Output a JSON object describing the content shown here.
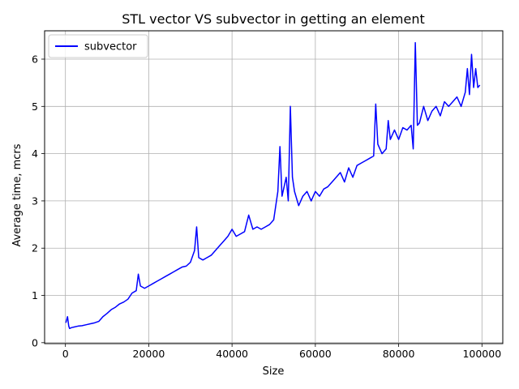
{
  "chart_data": {
    "type": "line",
    "title": "STL vector VS subvector in getting an element",
    "xlabel": "Size",
    "ylabel": "Average time, mcrs",
    "xlim": [
      -5000,
      105000
    ],
    "ylim": [
      -0.02,
      6.6
    ],
    "xticks": [
      0,
      20000,
      40000,
      60000,
      80000,
      100000
    ],
    "xtick_labels": [
      "0",
      "20000",
      "40000",
      "60000",
      "80000",
      "100000"
    ],
    "yticks": [
      0,
      1,
      2,
      3,
      4,
      5,
      6
    ],
    "ytick_labels": [
      "0",
      "1",
      "2",
      "3",
      "4",
      "5",
      "6"
    ],
    "grid": true,
    "legend_position": "upper-left",
    "series": [
      {
        "name": "subvector",
        "color": "#0000ff",
        "x": [
          100,
          500,
          800,
          1000,
          1500,
          2000,
          3000,
          4000,
          5000,
          6000,
          7000,
          8000,
          9000,
          10000,
          11000,
          12000,
          13000,
          14000,
          15000,
          16000,
          17000,
          17500,
          18000,
          19000,
          20000,
          21000,
          22000,
          23000,
          24000,
          25000,
          26000,
          27000,
          28000,
          29000,
          30000,
          31000,
          31500,
          32000,
          33000,
          34000,
          35000,
          36000,
          37000,
          38000,
          39000,
          40000,
          41000,
          42000,
          43000,
          44000,
          45000,
          46000,
          47000,
          48000,
          49000,
          50000,
          51000,
          51500,
          52000,
          53000,
          53500,
          54000,
          54500,
          55000,
          56000,
          57000,
          58000,
          59000,
          60000,
          61000,
          62000,
          63000,
          64000,
          65000,
          66000,
          67000,
          68000,
          69000,
          70000,
          71000,
          72000,
          73000,
          74000,
          74500,
          75000,
          76000,
          77000,
          77500,
          78000,
          79000,
          80000,
          81000,
          82000,
          83000,
          83500,
          84000,
          84500,
          85000,
          86000,
          87000,
          88000,
          89000,
          90000,
          91000,
          92000,
          93000,
          94000,
          95000,
          96000,
          96500,
          97000,
          97500,
          98000,
          98500,
          99000,
          99500
        ],
        "values": [
          0.42,
          0.55,
          0.35,
          0.3,
          0.32,
          0.33,
          0.35,
          0.36,
          0.38,
          0.4,
          0.42,
          0.45,
          0.55,
          0.62,
          0.7,
          0.75,
          0.82,
          0.86,
          0.92,
          1.05,
          1.1,
          1.45,
          1.2,
          1.15,
          1.2,
          1.25,
          1.3,
          1.35,
          1.4,
          1.45,
          1.5,
          1.55,
          1.6,
          1.62,
          1.7,
          1.95,
          2.45,
          1.8,
          1.75,
          1.8,
          1.85,
          1.95,
          2.05,
          2.15,
          2.25,
          2.4,
          2.25,
          2.3,
          2.35,
          2.7,
          2.4,
          2.45,
          2.4,
          2.45,
          2.5,
          2.6,
          3.2,
          4.15,
          3.1,
          3.5,
          3.0,
          5.0,
          3.5,
          3.2,
          2.9,
          3.1,
          3.2,
          3.0,
          3.2,
          3.1,
          3.25,
          3.3,
          3.4,
          3.5,
          3.6,
          3.4,
          3.7,
          3.5,
          3.75,
          3.8,
          3.85,
          3.9,
          3.95,
          5.05,
          4.2,
          4.0,
          4.1,
          4.7,
          4.3,
          4.5,
          4.3,
          4.55,
          4.5,
          4.6,
          4.1,
          6.35,
          4.6,
          4.65,
          5.0,
          4.7,
          4.9,
          5.0,
          4.8,
          5.1,
          5.0,
          5.1,
          5.2,
          5.0,
          5.3,
          5.8,
          5.25,
          6.1,
          5.4,
          5.8,
          5.4,
          5.45
        ]
      }
    ]
  }
}
